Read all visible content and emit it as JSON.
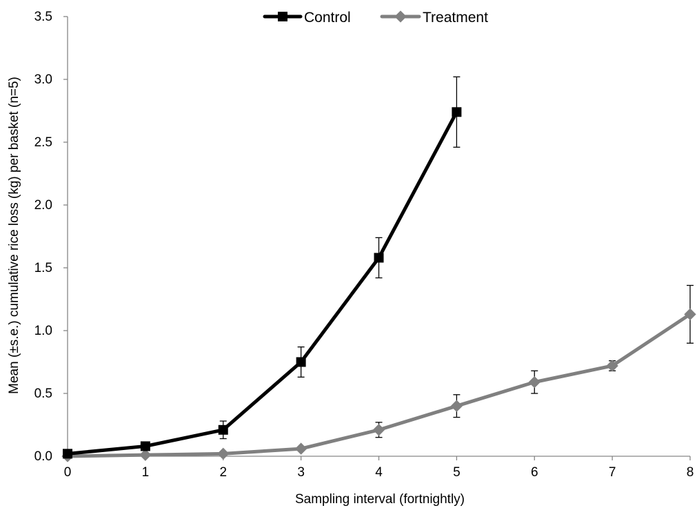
{
  "chart_data": {
    "type": "line",
    "xlabel": "Sampling interval (fortnightly)",
    "ylabel": "Mean (±s.e.) cumulative rice loss (kg) per basket (n=5)",
    "xlim": [
      0,
      8
    ],
    "ylim": [
      0,
      3.5
    ],
    "x_ticks": [
      "0",
      "1",
      "2",
      "3",
      "4",
      "5",
      "6",
      "7",
      "8"
    ],
    "y_ticks": [
      "0.0",
      "0.5",
      "1.0",
      "1.5",
      "2.0",
      "2.5",
      "3.0",
      "3.5"
    ],
    "grid": false,
    "legend_position": "top-center",
    "series": [
      {
        "name": "Control",
        "color": "#000000",
        "marker": "square",
        "x": [
          0,
          1,
          2,
          3,
          4,
          5
        ],
        "y": [
          0.02,
          0.08,
          0.21,
          0.75,
          1.58,
          2.74
        ],
        "error": [
          0.0,
          0.02,
          0.07,
          0.12,
          0.16,
          0.28
        ]
      },
      {
        "name": "Treatment",
        "color": "#808080",
        "marker": "diamond",
        "x": [
          0,
          1,
          2,
          3,
          4,
          5,
          6,
          7,
          8
        ],
        "y": [
          0.0,
          0.01,
          0.02,
          0.06,
          0.21,
          0.4,
          0.59,
          0.72,
          1.13
        ],
        "error": [
          0.0,
          0.0,
          0.0,
          0.01,
          0.06,
          0.09,
          0.09,
          0.04,
          0.23
        ]
      }
    ]
  }
}
